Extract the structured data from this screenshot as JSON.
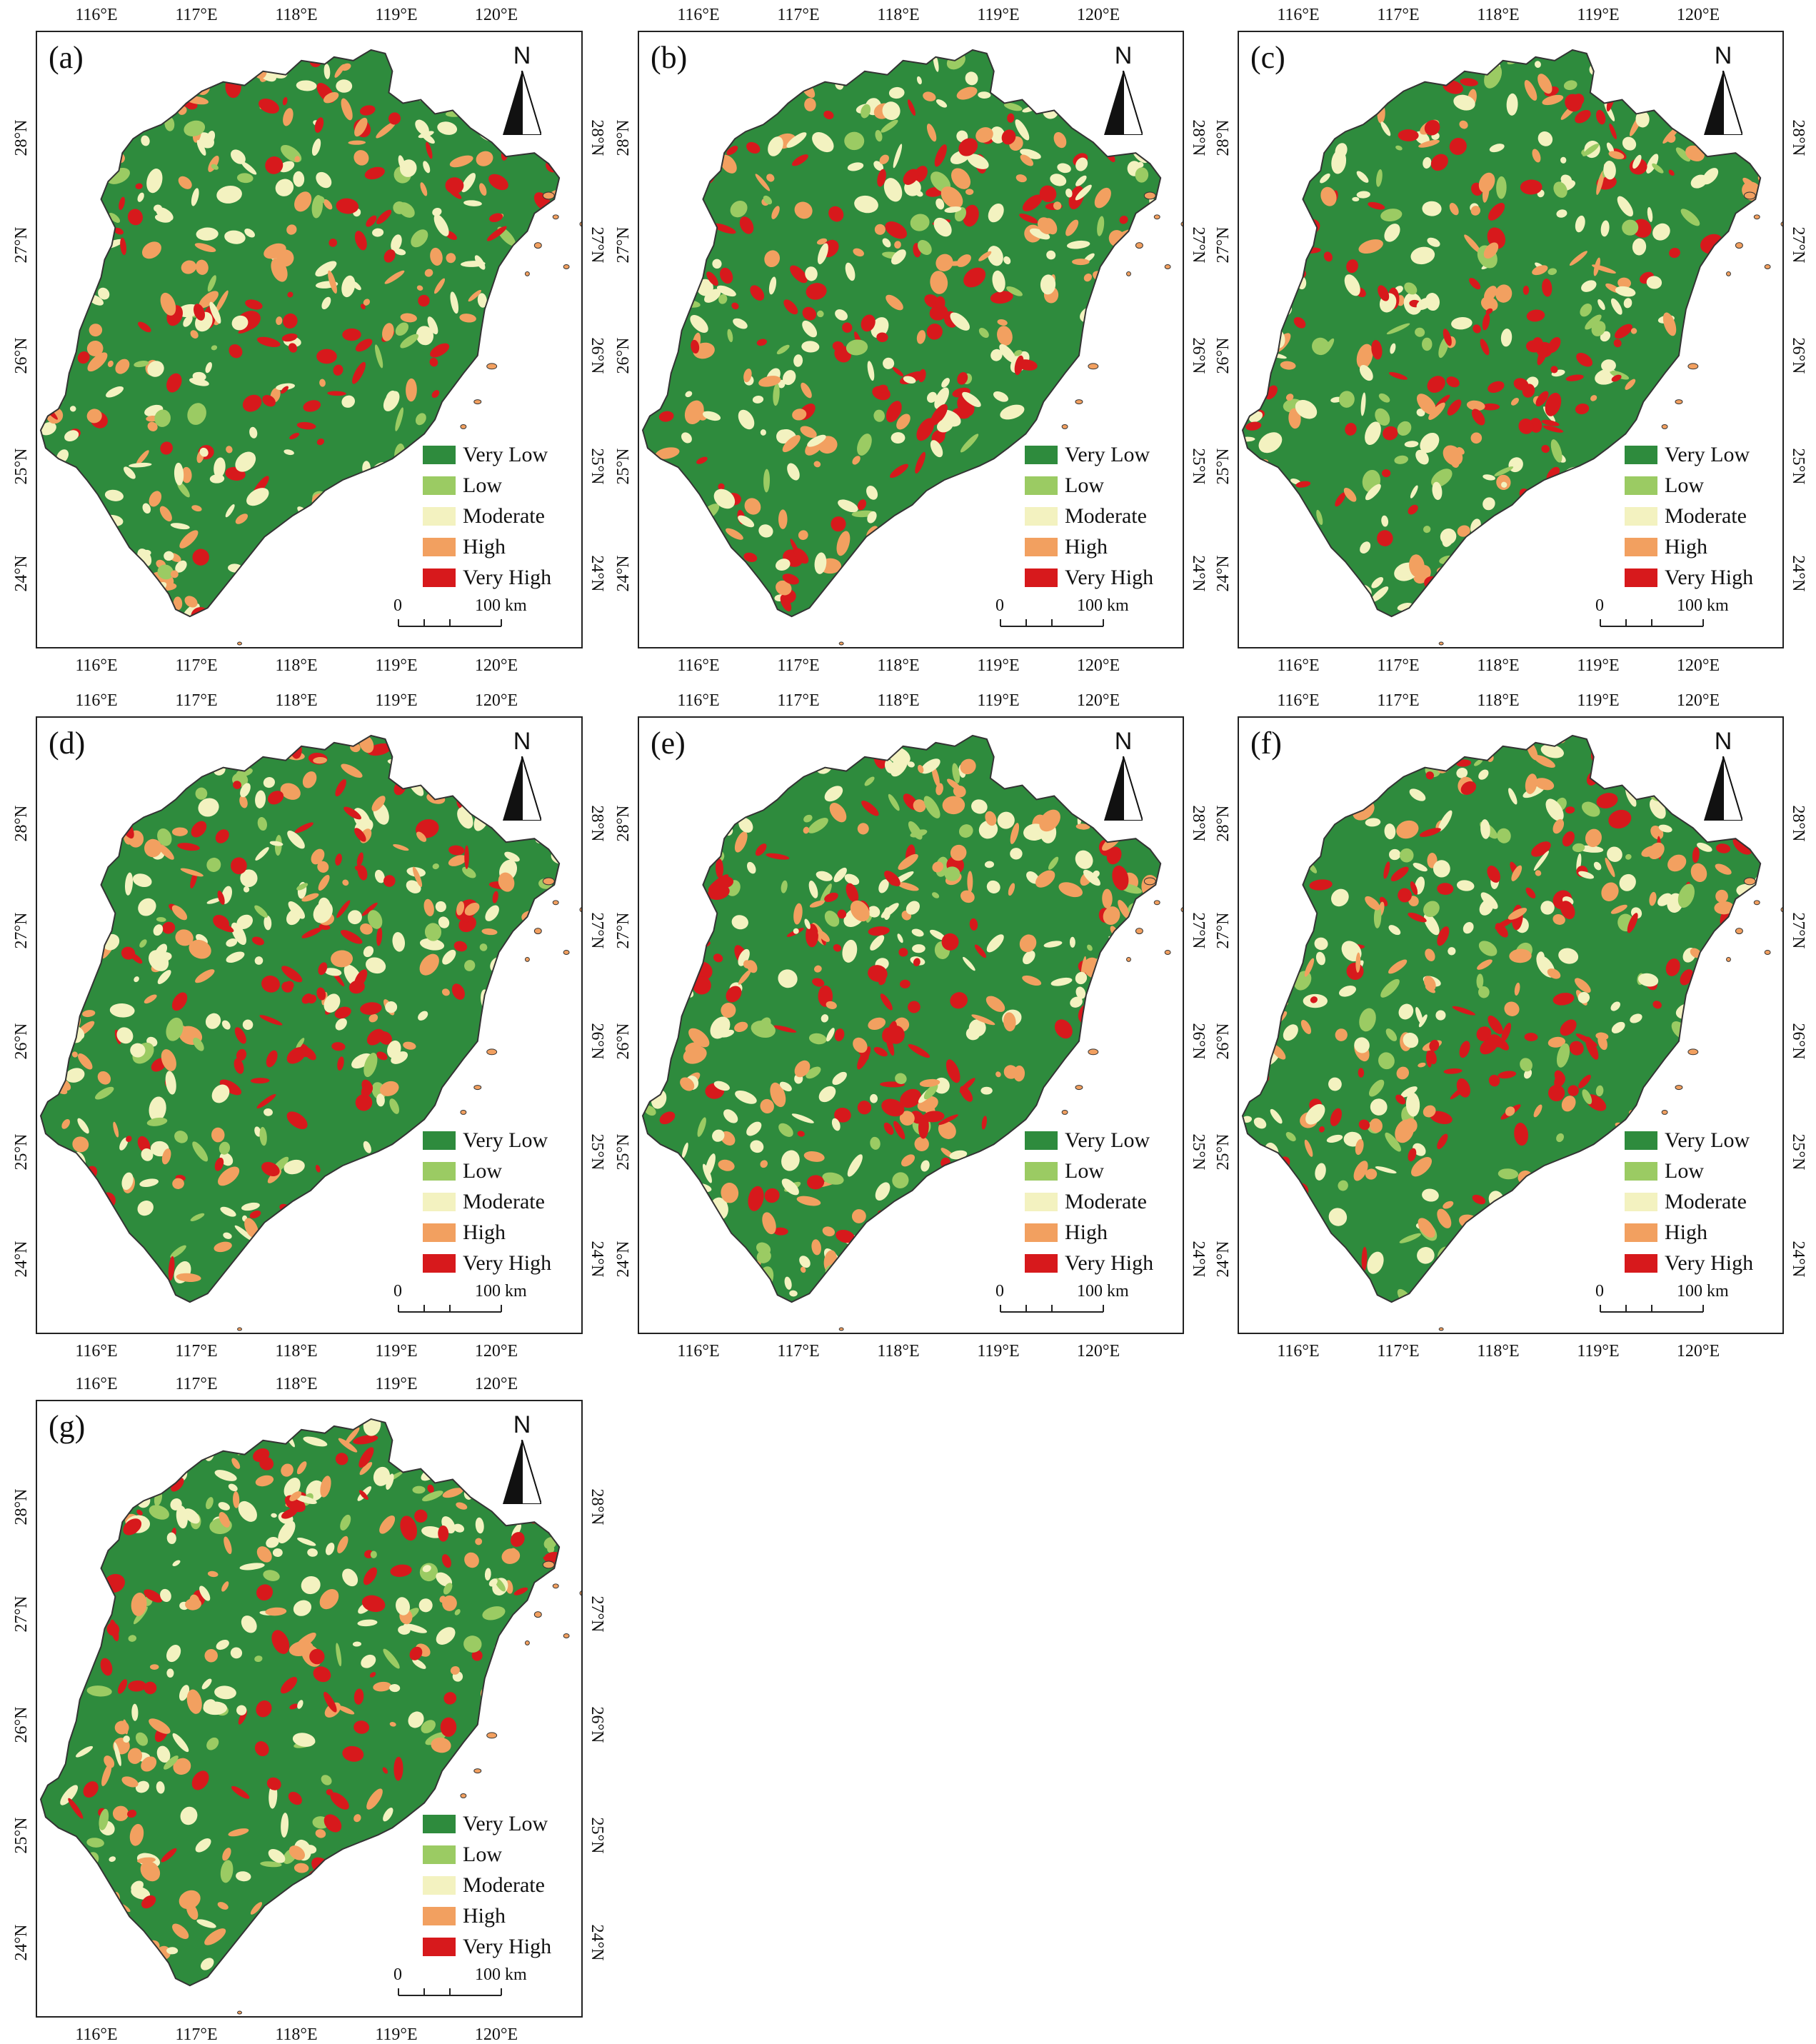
{
  "longitude_ticks": [
    "116°E",
    "117°E",
    "118°E",
    "119°E",
    "120°E"
  ],
  "latitude_ticks": [
    "24°N",
    "25°N",
    "26°N",
    "27°N",
    "28°N"
  ],
  "north_label": "N",
  "scale_bar": {
    "start": "0",
    "end": "100 km"
  },
  "legend": [
    {
      "label": "Very Low",
      "color": "#2e8b3d"
    },
    {
      "label": "Low",
      "color": "#9bcb63"
    },
    {
      "label": "Moderate",
      "color": "#f3f2c0"
    },
    {
      "label": "High",
      "color": "#f2a060"
    },
    {
      "label": "Very High",
      "color": "#d7191c"
    }
  ],
  "panels": [
    {
      "label": "(a)"
    },
    {
      "label": "(b)"
    },
    {
      "label": "(c)"
    },
    {
      "label": "(d)"
    },
    {
      "label": "(e)"
    },
    {
      "label": "(f)"
    },
    {
      "label": "(g)"
    }
  ]
}
